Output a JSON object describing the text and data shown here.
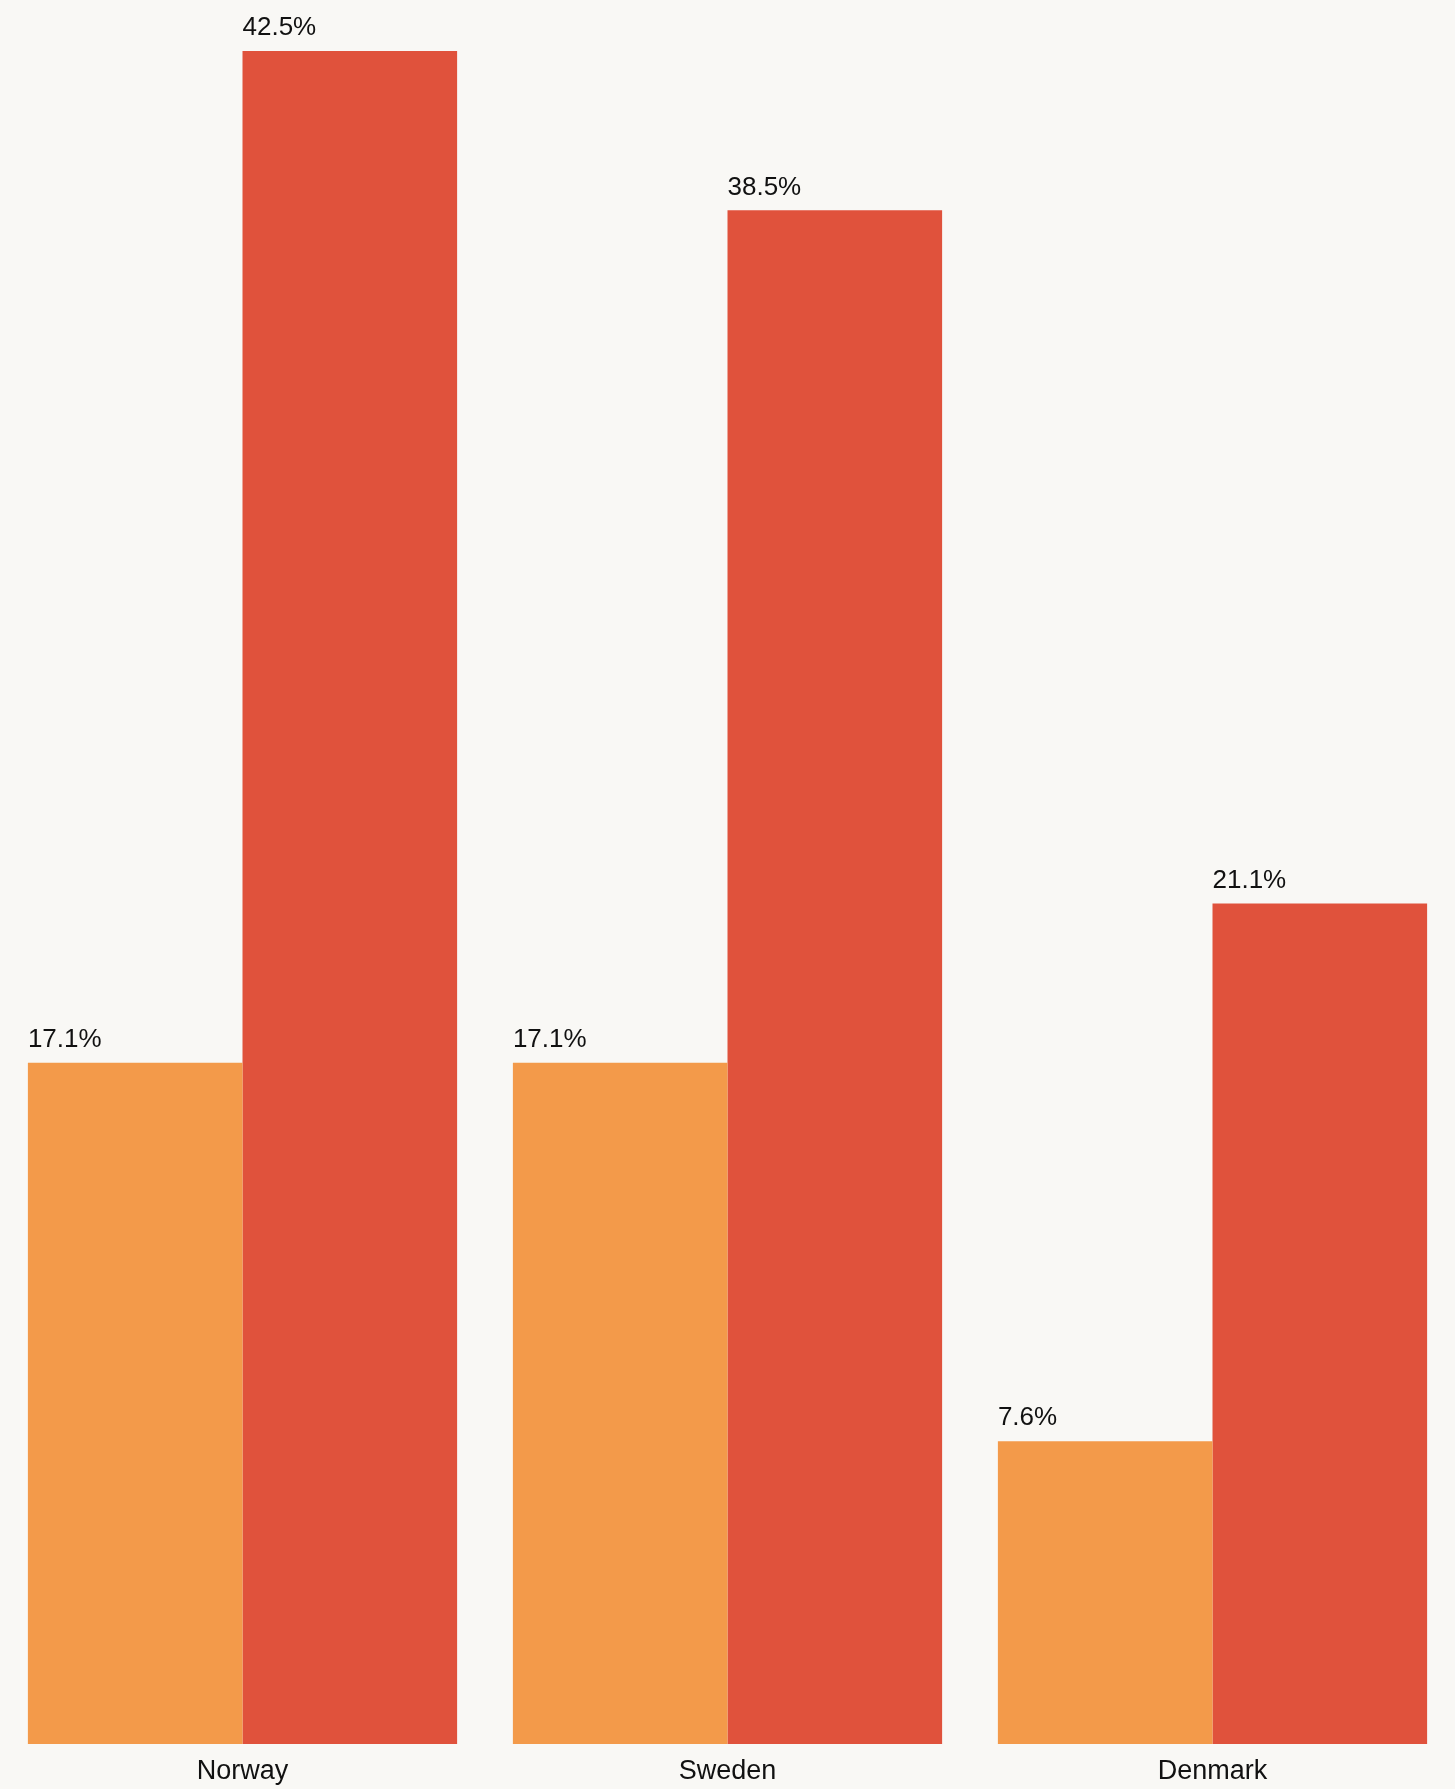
{
  "chart_data": {
    "type": "bar",
    "categories": [
      "Norway",
      "Sweden",
      "Denmark"
    ],
    "series": [
      {
        "color": "#f39a4a",
        "values": [
          17.1,
          17.1,
          7.6
        ],
        "value_labels": [
          "17.1%",
          "17.1%",
          "7.6%"
        ]
      },
      {
        "color": "#e0523c",
        "values": [
          42.5,
          38.5,
          21.1
        ],
        "value_labels": [
          "42.5%",
          "38.5%",
          "21.1%"
        ]
      }
    ]
  }
}
